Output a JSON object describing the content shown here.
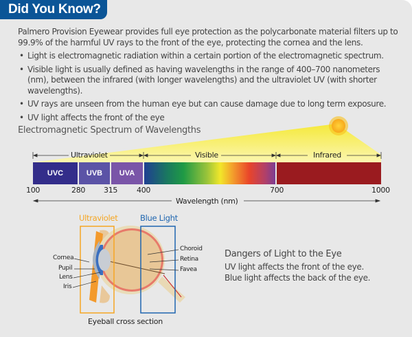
{
  "header": {
    "title": "Did You Know?",
    "accent": "#0b5597"
  },
  "intro": "Palmero Provision Eyewear provides full eye protection as the polycarbonate material filters up to 99.9% of the harmful UV rays to the front of the eye, protecting the cornea and the lens.",
  "bullets": [
    "Light is electromagnetic radiation within a certain portion of the electromagnetic spectrum.",
    "Visible light is usually defined as having wavelengths in the range of 400–700 nanometers (nm), between the infrared (with longer wavelengths) and the ultraviolet UV (with shorter wavelengths).",
    "UV rays are unseen from the human eye but can cause damage due to long term exposure.",
    "UV light affects the front of the eye"
  ],
  "spectrum": {
    "title": "Electromagnetic Spectrum of Wavelengths",
    "ranges": [
      "Ultraviolet",
      "Visible",
      "Infrared"
    ],
    "segments": [
      {
        "label": "UVC",
        "color": "#332d8a"
      },
      {
        "label": "UVB",
        "color": "#5b53a6"
      },
      {
        "label": "UVA",
        "color": "#7a55a8"
      },
      {
        "label": "",
        "color": "gradient"
      },
      {
        "label": "",
        "color": "#9a1b1f"
      }
    ],
    "ticks": [
      "100",
      "280",
      "315",
      "400",
      "700",
      "1000"
    ],
    "axis_label": "Wavelength (nm)"
  },
  "eye": {
    "uv_label": "Ultraviolet",
    "uv_color": "#f5a623",
    "blue_label": "Blue Light",
    "blue_color": "#1f66b0",
    "left_labels": [
      "Cornea",
      "Pupil",
      "Lens",
      "Iris"
    ],
    "right_labels": [
      "Choroid",
      "Retina",
      "Favea"
    ],
    "caption": "Eyeball cross section"
  },
  "dangers": {
    "title": "Dangers of Light to the Eye",
    "lines": [
      "UV light affects the front of the eye.",
      "Blue light affects the back of the eye."
    ]
  }
}
